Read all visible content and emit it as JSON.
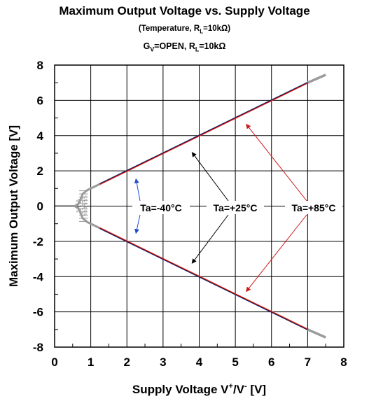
{
  "chart_data": {
    "type": "line",
    "title": "Maximum Output Voltage vs. Supply Voltage",
    "subtitle_prefix": "(Temperature, R",
    "subtitle_sub": "L",
    "subtitle_suffix": "=10kΩ)",
    "cond_g": "G",
    "cond_g_sub": "V",
    "cond_mid": "=OPEN, R",
    "cond_r_sub": "L",
    "cond_suffix": "=10kΩ",
    "xlabel_main": "Supply Voltage V",
    "xlabel_sup1": "+",
    "xlabel_slash": "/V",
    "xlabel_sup2": "-",
    "xlabel_unit": " [V]",
    "ylabel": "Maximum Output Voltage [V]",
    "xlim": [
      0,
      8
    ],
    "ylim": [
      -8,
      8
    ],
    "xticks": [
      "0",
      "1",
      "2",
      "3",
      "4",
      "5",
      "6",
      "7",
      "8"
    ],
    "yticks": [
      "8",
      "6",
      "4",
      "2",
      "0",
      "-2",
      "-4",
      "-6",
      "-8"
    ],
    "grid": true,
    "series": [
      {
        "name": "Ta=-40°C",
        "color": "#1f4fd1",
        "x": [
          1.25,
          2,
          3,
          4,
          5,
          6,
          7
        ],
        "y_high": [
          1.25,
          2,
          3,
          4,
          5,
          6,
          7
        ],
        "y_low": [
          -1.25,
          -2,
          -3,
          -4,
          -5,
          -6,
          -7
        ]
      },
      {
        "name": "Ta=+25°C",
        "color": "#000000",
        "x": [
          1.25,
          2,
          3,
          4,
          5,
          6,
          7
        ],
        "y_high": [
          1.25,
          2,
          3,
          4,
          5,
          6,
          7
        ],
        "y_low": [
          -1.25,
          -2,
          -3,
          -4,
          -5,
          -6,
          -7
        ]
      },
      {
        "name": "Ta=+85°C",
        "color": "#d01818",
        "x": [
          1.25,
          2,
          3,
          4,
          5,
          6,
          7
        ],
        "y_high": [
          1.25,
          2,
          3,
          4,
          5,
          6,
          7
        ],
        "y_low": [
          -1.25,
          -2,
          -3,
          -4,
          -5,
          -6,
          -7
        ]
      }
    ],
    "extension_color": "#9a9a9a",
    "annotations": [
      {
        "label": "Ta=-40°C",
        "color": "#1f4fd1",
        "targets": [
          [
            2.25,
            1.55
          ],
          [
            2.25,
            -1.55
          ]
        ]
      },
      {
        "label": "Ta=+25°C",
        "color": "#000000",
        "targets": [
          [
            3.8,
            3.05
          ],
          [
            3.8,
            -3.25
          ]
        ]
      },
      {
        "label": "Ta=+85°C",
        "color": "#d01818",
        "targets": [
          [
            5.3,
            4.65
          ],
          [
            5.3,
            -4.85
          ]
        ]
      }
    ]
  }
}
